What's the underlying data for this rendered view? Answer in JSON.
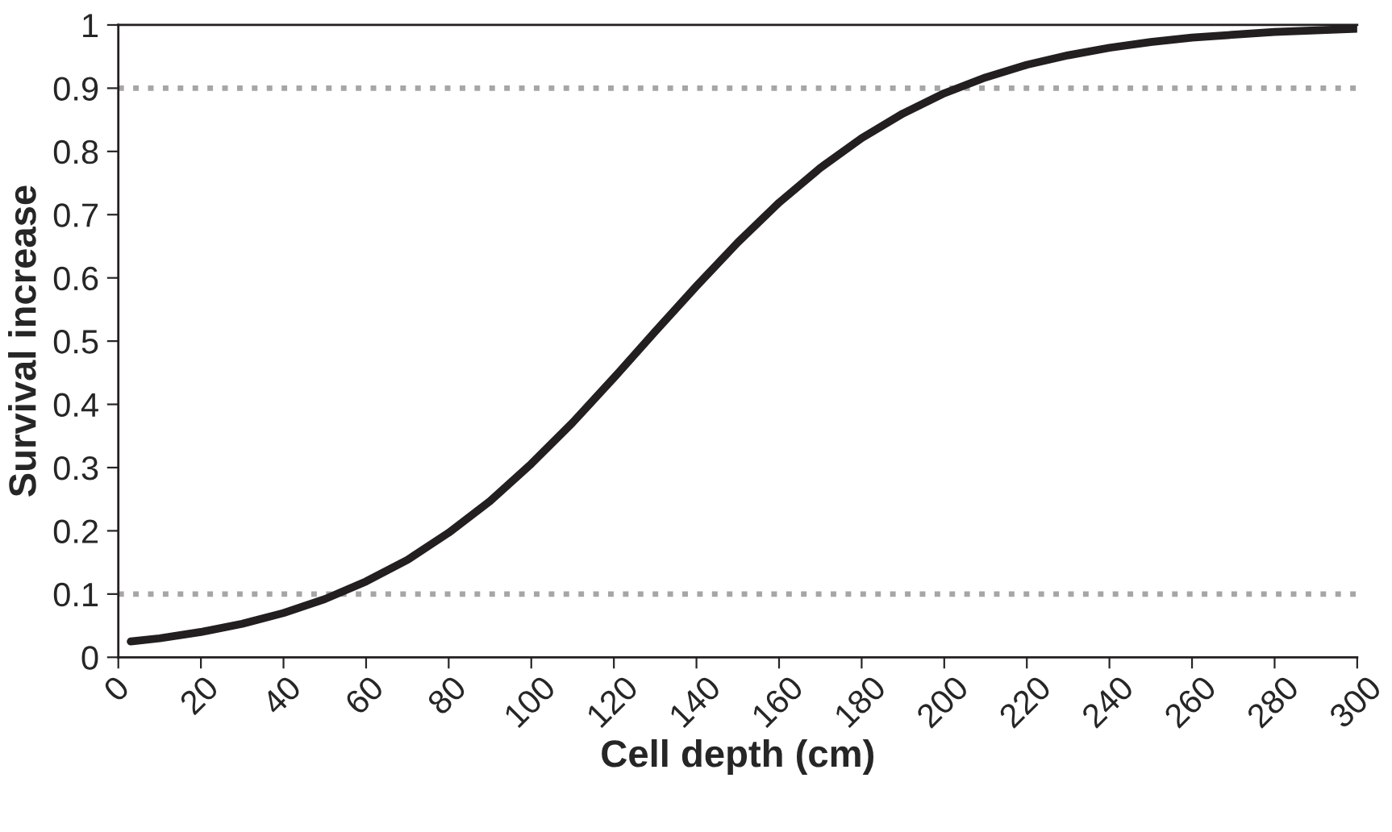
{
  "chart_data": {
    "type": "line",
    "xlabel": "Cell depth (cm)",
    "ylabel": "Survival increase",
    "x": [
      3,
      10,
      20,
      30,
      40,
      50,
      60,
      70,
      80,
      90,
      100,
      110,
      120,
      130,
      140,
      150,
      160,
      170,
      180,
      190,
      200,
      210,
      220,
      230,
      240,
      250,
      260,
      280,
      300
    ],
    "series": [
      {
        "color": "#231f20",
        "values": [
          0.025,
          0.03,
          0.04,
          0.053,
          0.07,
          0.092,
          0.12,
          0.154,
          0.197,
          0.247,
          0.306,
          0.371,
          0.442,
          0.515,
          0.587,
          0.656,
          0.719,
          0.774,
          0.821,
          0.86,
          0.892,
          0.917,
          0.937,
          0.952,
          0.964,
          0.973,
          0.98,
          0.989,
          0.994
        ]
      }
    ],
    "xlim": [
      0,
      300
    ],
    "xticks": [
      0,
      20,
      40,
      60,
      80,
      100,
      120,
      140,
      160,
      180,
      200,
      220,
      240,
      260,
      280,
      300
    ],
    "ylim": [
      0,
      1
    ],
    "yticks": [
      0,
      0.1,
      0.2,
      0.3,
      0.4,
      0.5,
      0.6,
      0.7,
      0.8,
      0.9,
      1
    ],
    "ref_lines": [
      {
        "axis": "y",
        "value": 0.1,
        "color": "#a6a6a6",
        "line_style": "dotted"
      },
      {
        "axis": "y",
        "value": 0.9,
        "color": "#a6a6a6",
        "line_style": "dotted"
      }
    ],
    "grid": false,
    "legend": false,
    "marker": "none",
    "line_style": "solid"
  }
}
